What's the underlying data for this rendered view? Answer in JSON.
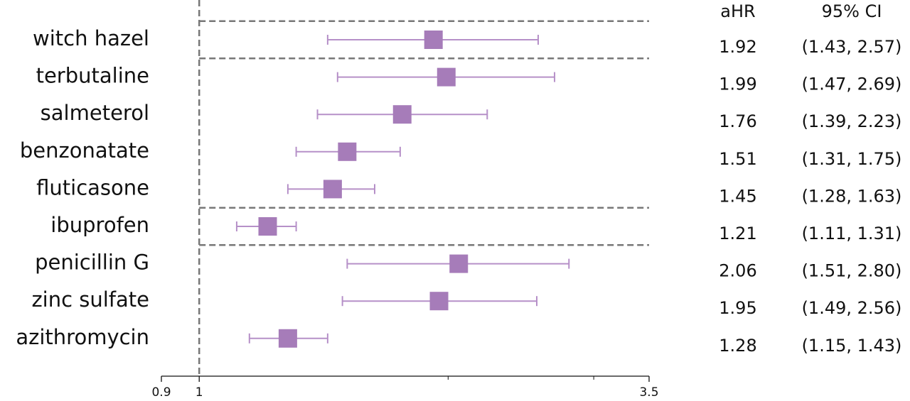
{
  "chart_data": {
    "type": "forest",
    "categories": [
      "witch hazel",
      "terbutaline",
      "salmeterol",
      "benzonatate",
      "fluticasone",
      "ibuprofen",
      "penicillin G",
      "zinc sulfate",
      "azithromycin"
    ],
    "values": [
      1.92,
      1.99,
      1.76,
      1.51,
      1.45,
      1.21,
      2.06,
      1.95,
      1.28
    ],
    "lower": [
      1.43,
      1.47,
      1.39,
      1.31,
      1.28,
      1.11,
      1.51,
      1.49,
      1.15
    ],
    "upper": [
      2.57,
      2.69,
      2.23,
      1.75,
      1.63,
      1.31,
      2.8,
      2.56,
      1.43
    ],
    "ci_labels": [
      "(1.43, 2.57)",
      "(1.47, 2.69)",
      "(1.39, 2.23)",
      "(1.31, 1.75)",
      "(1.28, 1.63)",
      "(1.11, 1.31)",
      "(1.51, 2.80)",
      "(1.49, 2.56)",
      "(1.15, 1.43)"
    ],
    "columns": [
      "aHR",
      "95% CI"
    ],
    "color": "#a67cb9",
    "bar_color": "#b690c8",
    "xscale": "log",
    "xlim": [
      0.9,
      3.5
    ],
    "xticks": [
      0.9,
      1,
      3.5
    ],
    "minor_xticks": [
      2,
      3
    ],
    "reference": 1
  }
}
